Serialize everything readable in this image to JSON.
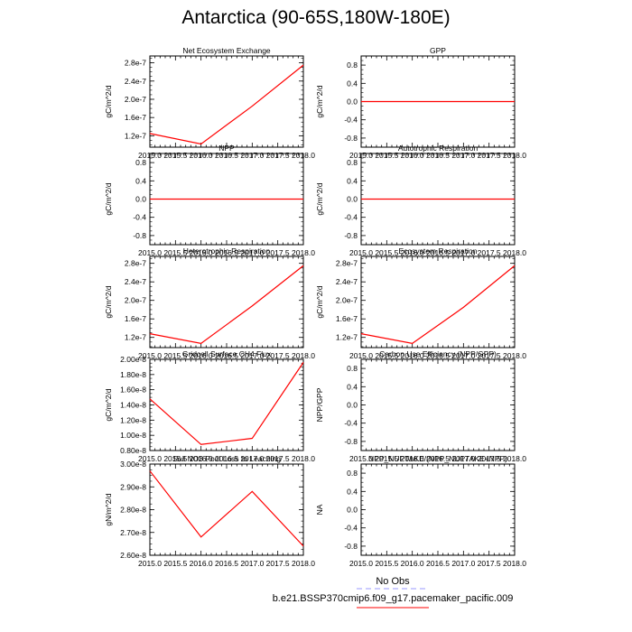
{
  "title": "Antarctica (90-65S,180W-180E)",
  "legend": {
    "obs_label": "No Obs",
    "obs_color": "#9999ff",
    "model_label": "b.e21.BSSP370cmip6.f09_g17.pacemaker_pacific.009",
    "model_color": "#ff0000"
  },
  "chart_data": [
    {
      "type": "line",
      "title": "Net Ecosystem Exchange",
      "ylabel": "gC/m^2/d",
      "x": [
        2015,
        2016,
        2017,
        2018
      ],
      "series": [
        {
          "values": [
            1.25e-07,
            1.02e-07,
            1.85e-07,
            2.75e-07
          ]
        }
      ],
      "xlim": [
        2015,
        2018
      ],
      "ylim": [
        9.5e-08,
        2.95e-07
      ],
      "xticks": [
        "2015.0",
        "2015.5",
        "2016.0",
        "2016.5",
        "2017.0",
        "2017.5",
        "2018.0"
      ],
      "yticks": [
        {
          "v": 1.2e-07,
          "label": "1.2e-7"
        },
        {
          "v": 1.6e-07,
          "label": "1.6e-7"
        },
        {
          "v": 2e-07,
          "label": "2.0e-7"
        },
        {
          "v": 2.4e-07,
          "label": "2.4e-7"
        },
        {
          "v": 2.8e-07,
          "label": "2.8e-7"
        }
      ]
    },
    {
      "type": "line",
      "title": "GPP",
      "ylabel": "gC/m^2/d",
      "x": [
        2015,
        2016,
        2017,
        2018
      ],
      "series": [
        {
          "values": [
            0,
            0,
            0,
            0
          ]
        }
      ],
      "xlim": [
        2015,
        2018
      ],
      "ylim": [
        -1,
        1
      ],
      "xticks": [
        "2015.0",
        "2015.5",
        "2016.0",
        "2016.5",
        "2017.0",
        "2017.5",
        "2018.0"
      ],
      "yticks": [
        {
          "v": -0.8,
          "label": "-0.8"
        },
        {
          "v": -0.4,
          "label": "-0.4"
        },
        {
          "v": 0,
          "label": "0.0"
        },
        {
          "v": 0.4,
          "label": "0.4"
        },
        {
          "v": 0.8,
          "label": "0.8"
        }
      ]
    },
    {
      "type": "line",
      "title": "NPP",
      "ylabel": "gC/m^2/d",
      "x": [
        2015,
        2016,
        2017,
        2018
      ],
      "series": [
        {
          "values": [
            0,
            0,
            0,
            0
          ]
        }
      ],
      "xlim": [
        2015,
        2018
      ],
      "ylim": [
        -1,
        1
      ],
      "xticks": [
        "2015.0",
        "2015.5",
        "2016.0",
        "2016.5",
        "2017.0",
        "2017.5",
        "2018.0"
      ],
      "yticks": [
        {
          "v": -0.8,
          "label": "-0.8"
        },
        {
          "v": -0.4,
          "label": "-0.4"
        },
        {
          "v": 0,
          "label": "0.0"
        },
        {
          "v": 0.4,
          "label": "0.4"
        },
        {
          "v": 0.8,
          "label": "0.8"
        }
      ]
    },
    {
      "type": "line",
      "title": "Autotrophic Respiration",
      "ylabel": "gC/m^2/d",
      "x": [
        2015,
        2016,
        2017,
        2018
      ],
      "series": [
        {
          "values": [
            0,
            0,
            0,
            0
          ]
        }
      ],
      "xlim": [
        2015,
        2018
      ],
      "ylim": [
        -1,
        1
      ],
      "xticks": [
        "2015.0",
        "2015.5",
        "2016.0",
        "2016.5",
        "2017.0",
        "2017.5",
        "2018.0"
      ],
      "yticks": [
        {
          "v": -0.8,
          "label": "-0.8"
        },
        {
          "v": -0.4,
          "label": "-0.4"
        },
        {
          "v": 0,
          "label": "0.0"
        },
        {
          "v": 0.4,
          "label": "0.4"
        },
        {
          "v": 0.8,
          "label": "0.8"
        }
      ]
    },
    {
      "type": "line",
      "title": "Heterotrophic Respiration",
      "ylabel": "gC/m^2/d",
      "x": [
        2015,
        2016,
        2017,
        2018
      ],
      "series": [
        {
          "values": [
            1.28e-07,
            1.07e-07,
            1.88e-07,
            2.75e-07
          ]
        }
      ],
      "xlim": [
        2015,
        2018
      ],
      "ylim": [
        9.8e-08,
        2.95e-07
      ],
      "xticks": [
        "2015.0",
        "2015.5",
        "2016.0",
        "2016.5",
        "2017.0",
        "2017.5",
        "2018.0"
      ],
      "yticks": [
        {
          "v": 1.2e-07,
          "label": "1.2e-7"
        },
        {
          "v": 1.6e-07,
          "label": "1.6e-7"
        },
        {
          "v": 2e-07,
          "label": "2.0e-7"
        },
        {
          "v": 2.4e-07,
          "label": "2.4e-7"
        },
        {
          "v": 2.8e-07,
          "label": "2.8e-7"
        }
      ]
    },
    {
      "type": "line",
      "title": "Ecosystem Respiration",
      "ylabel": "gC/m^2/d",
      "x": [
        2015,
        2016,
        2017,
        2018
      ],
      "series": [
        {
          "values": [
            1.28e-07,
            1.07e-07,
            1.85e-07,
            2.75e-07
          ]
        }
      ],
      "xlim": [
        2015,
        2018
      ],
      "ylim": [
        9.8e-08,
        2.95e-07
      ],
      "xticks": [
        "2015.0",
        "2015.5",
        "2016.0",
        "2016.5",
        "2017.0",
        "2017.5",
        "2018.0"
      ],
      "yticks": [
        {
          "v": 1.2e-07,
          "label": "1.2e-7"
        },
        {
          "v": 1.6e-07,
          "label": "1.6e-7"
        },
        {
          "v": 2e-07,
          "label": "2.0e-7"
        },
        {
          "v": 2.4e-07,
          "label": "2.4e-7"
        },
        {
          "v": 2.8e-07,
          "label": "2.8e-7"
        }
      ]
    },
    {
      "type": "line",
      "title": "Gridcell Surface CH4 Flux",
      "ylabel": "gC/m^2/d",
      "x": [
        2015,
        2016,
        2017,
        2018
      ],
      "series": [
        {
          "values": [
            1.48e-08,
            8.8e-09,
            9.6e-09,
            1.96e-08
          ]
        }
      ],
      "xlim": [
        2015,
        2018
      ],
      "ylim": [
        8e-09,
        2e-08
      ],
      "xticks": [
        "2015.0",
        "2015.5",
        "2016.0",
        "2016.5",
        "2017.0",
        "2017.5",
        "2018.0"
      ],
      "yticks": [
        {
          "v": 8e-09,
          "label": "0.80e-8"
        },
        {
          "v": 1e-08,
          "label": "1.00e-8"
        },
        {
          "v": 1.2e-08,
          "label": "1.20e-8"
        },
        {
          "v": 1.4e-08,
          "label": "1.40e-8"
        },
        {
          "v": 1.6e-08,
          "label": "1.60e-8"
        },
        {
          "v": 1.8e-08,
          "label": "1.80e-8"
        },
        {
          "v": 2e-08,
          "label": "2.00e-8"
        }
      ]
    },
    {
      "type": "line",
      "title": "Carbon Use Efficiency (NPP/GPP)",
      "ylabel": "NPP/GPP",
      "x": [
        2015,
        2016,
        2017,
        2018
      ],
      "series": [],
      "xlim": [
        2015,
        2018
      ],
      "ylim": [
        -1,
        1
      ],
      "xticks": [
        "2015.0",
        "2015.5",
        "2016.0",
        "2016.5",
        "2017.0",
        "2017.5",
        "2018.0"
      ],
      "yticks": [
        {
          "v": -0.8,
          "label": "-0.8"
        },
        {
          "v": -0.4,
          "label": "-0.4"
        },
        {
          "v": 0,
          "label": "0.0"
        },
        {
          "v": 0.4,
          "label": "0.4"
        },
        {
          "v": 0.8,
          "label": "0.8"
        }
      ]
    },
    {
      "type": "line",
      "title": "Soil NO3 Pool Loss to Leaching",
      "ylabel": "gN/m^2/d",
      "x": [
        2015,
        2016,
        2017,
        2018
      ],
      "series": [
        {
          "values": [
            2.97e-08,
            2.68e-08,
            2.88e-08,
            2.64e-08
          ]
        }
      ],
      "xlim": [
        2015,
        2018
      ],
      "ylim": [
        2.6e-08,
        3e-08
      ],
      "xticks": [
        "2015.0",
        "2015.5",
        "2016.0",
        "2016.5",
        "2017.0",
        "2017.5",
        "2018.0"
      ],
      "yticks": [
        {
          "v": 2.6e-08,
          "label": "2.60e-8"
        },
        {
          "v": 2.7e-08,
          "label": "2.70e-8"
        },
        {
          "v": 2.8e-08,
          "label": "2.80e-8"
        },
        {
          "v": 2.9e-08,
          "label": "2.90e-8"
        },
        {
          "v": 3e-08,
          "label": "3.00e-8"
        }
      ]
    },
    {
      "type": "line",
      "title": "NPP_NUPTAKE/(NPP_NUPTAKE+NPP)",
      "ylabel": "NA",
      "x": [
        2015,
        2016,
        2017,
        2018
      ],
      "series": [],
      "xlim": [
        2015,
        2018
      ],
      "ylim": [
        -1,
        1
      ],
      "xticks": [
        "2015.0",
        "2015.5",
        "2016.0",
        "2016.5",
        "2017.0",
        "2017.5",
        "2018.0"
      ],
      "yticks": [
        {
          "v": -0.8,
          "label": "-0.8"
        },
        {
          "v": -0.4,
          "label": "-0.4"
        },
        {
          "v": 0,
          "label": "0.0"
        },
        {
          "v": 0.4,
          "label": "0.4"
        },
        {
          "v": 0.8,
          "label": "0.8"
        }
      ]
    }
  ]
}
